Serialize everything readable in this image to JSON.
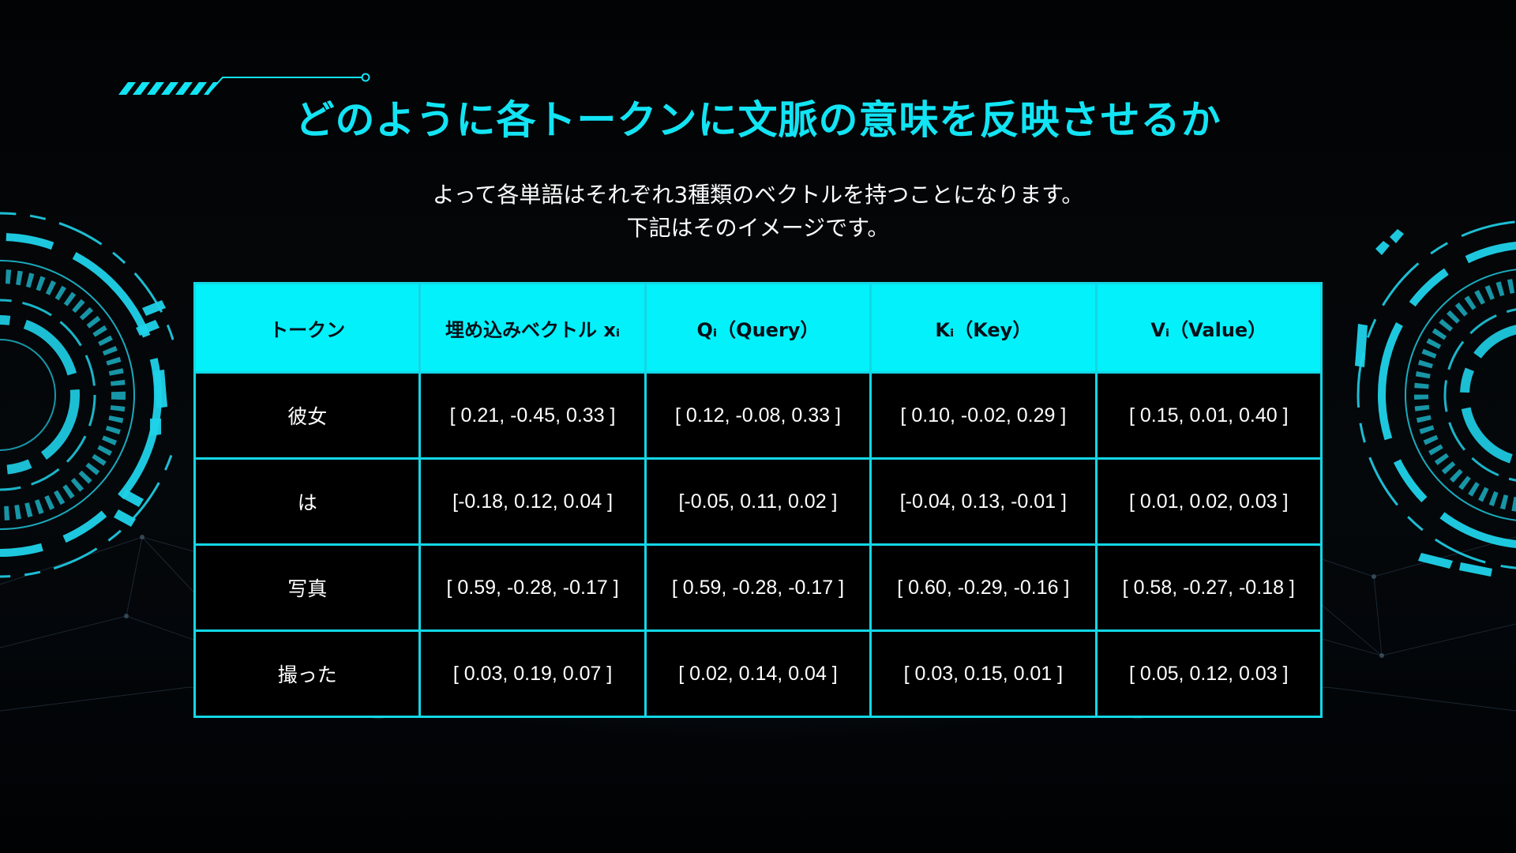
{
  "slide": {
    "title": "どのように各トークンに文脈の意味を反映させるか",
    "subtitle_lines": [
      "よって各単語はそれぞれ3種類のベクトルを持つことになります。",
      "下記はそのイメージです。"
    ]
  },
  "table": {
    "headers": [
      "トークン",
      "埋め込みベクトル xᵢ",
      "Qᵢ（Query）",
      "Kᵢ（Key）",
      "Vᵢ（Value）"
    ],
    "rows": [
      [
        "彼女",
        "[ 0.21, -0.45,  0.33 ]",
        "[ 0.12, -0.08,  0.33 ]",
        "[ 0.10, -0.02,  0.29 ]",
        "[ 0.15,  0.01,  0.40 ]"
      ],
      [
        "は",
        "[-0.18,  0.12,  0.04 ]",
        "[-0.05,  0.11,  0.02 ]",
        "[-0.04,  0.13, -0.01 ]",
        "[ 0.01,  0.02,  0.03 ]"
      ],
      [
        "写真",
        "[ 0.59, -0.28, -0.17 ]",
        "[ 0.59, -0.28, -0.17 ]",
        "[ 0.60, -0.29, -0.16 ]",
        "[ 0.58, -0.27, -0.18 ]"
      ],
      [
        "撮った",
        "[ 0.03,  0.19,  0.07 ]",
        "[ 0.02,  0.14,  0.04 ]",
        "[ 0.03,  0.15,  0.01 ]",
        "[ 0.05,  0.12,  0.03 ]"
      ]
    ]
  },
  "colors": {
    "accent": "#12e4f4",
    "header_fill": "#03f1fb",
    "background": "#000000",
    "text": "#ffffff"
  }
}
